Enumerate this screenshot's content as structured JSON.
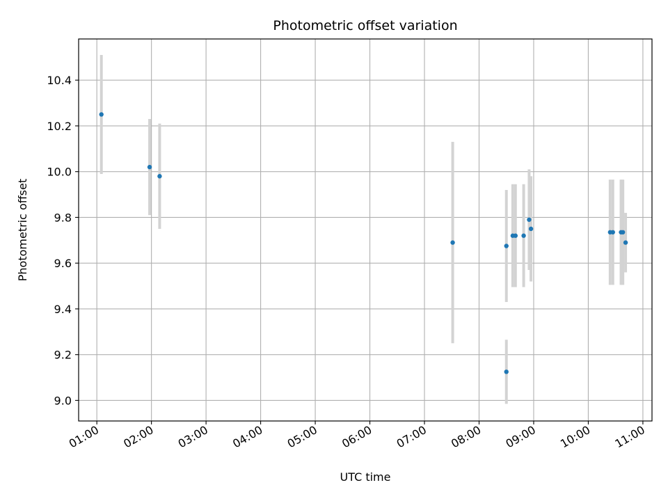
{
  "chart_data": {
    "type": "scatter",
    "title": "Photometric offset variation",
    "xlabel": "UTC time",
    "ylabel": "Photometric offset",
    "x_ticks": [
      "01:00",
      "02:00",
      "03:00",
      "04:00",
      "05:00",
      "06:00",
      "07:00",
      "08:00",
      "09:00",
      "10:00",
      "11:00"
    ],
    "y_ticks": [
      "9.0",
      "9.2",
      "9.4",
      "9.6",
      "9.8",
      "10.0",
      "10.2",
      "10.4"
    ],
    "xlim": [
      "00:40",
      "11:10"
    ],
    "ylim": [
      8.91,
      10.58
    ],
    "grid": true,
    "colors": {
      "point": "#1f77b4",
      "errorbar": "#d3d3d3",
      "grid": "#b0b0b0"
    },
    "points": [
      {
        "x": "01:05",
        "y": 10.25,
        "err": 0.26
      },
      {
        "x": "01:58",
        "y": 10.02,
        "err": 0.21
      },
      {
        "x": "02:09",
        "y": 9.98,
        "err": 0.23
      },
      {
        "x": "07:31",
        "y": 9.69,
        "err": 0.44
      },
      {
        "x": "08:30",
        "y": 9.675,
        "err": 0.245
      },
      {
        "x": "08:30",
        "y": 9.125,
        "err": 0.14
      },
      {
        "x": "08:37",
        "y": 9.72,
        "err": 0.225
      },
      {
        "x": "08:40",
        "y": 9.72,
        "err": 0.225
      },
      {
        "x": "08:49",
        "y": 9.72,
        "err": 0.225
      },
      {
        "x": "08:55",
        "y": 9.79,
        "err": 0.22
      },
      {
        "x": "08:57",
        "y": 9.75,
        "err": 0.23
      },
      {
        "x": "10:24",
        "y": 9.735,
        "err": 0.23
      },
      {
        "x": "10:27",
        "y": 9.735,
        "err": 0.23
      },
      {
        "x": "10:36",
        "y": 9.735,
        "err": 0.23
      },
      {
        "x": "10:38",
        "y": 9.735,
        "err": 0.23
      },
      {
        "x": "10:41",
        "y": 9.69,
        "err": 0.13
      }
    ]
  }
}
